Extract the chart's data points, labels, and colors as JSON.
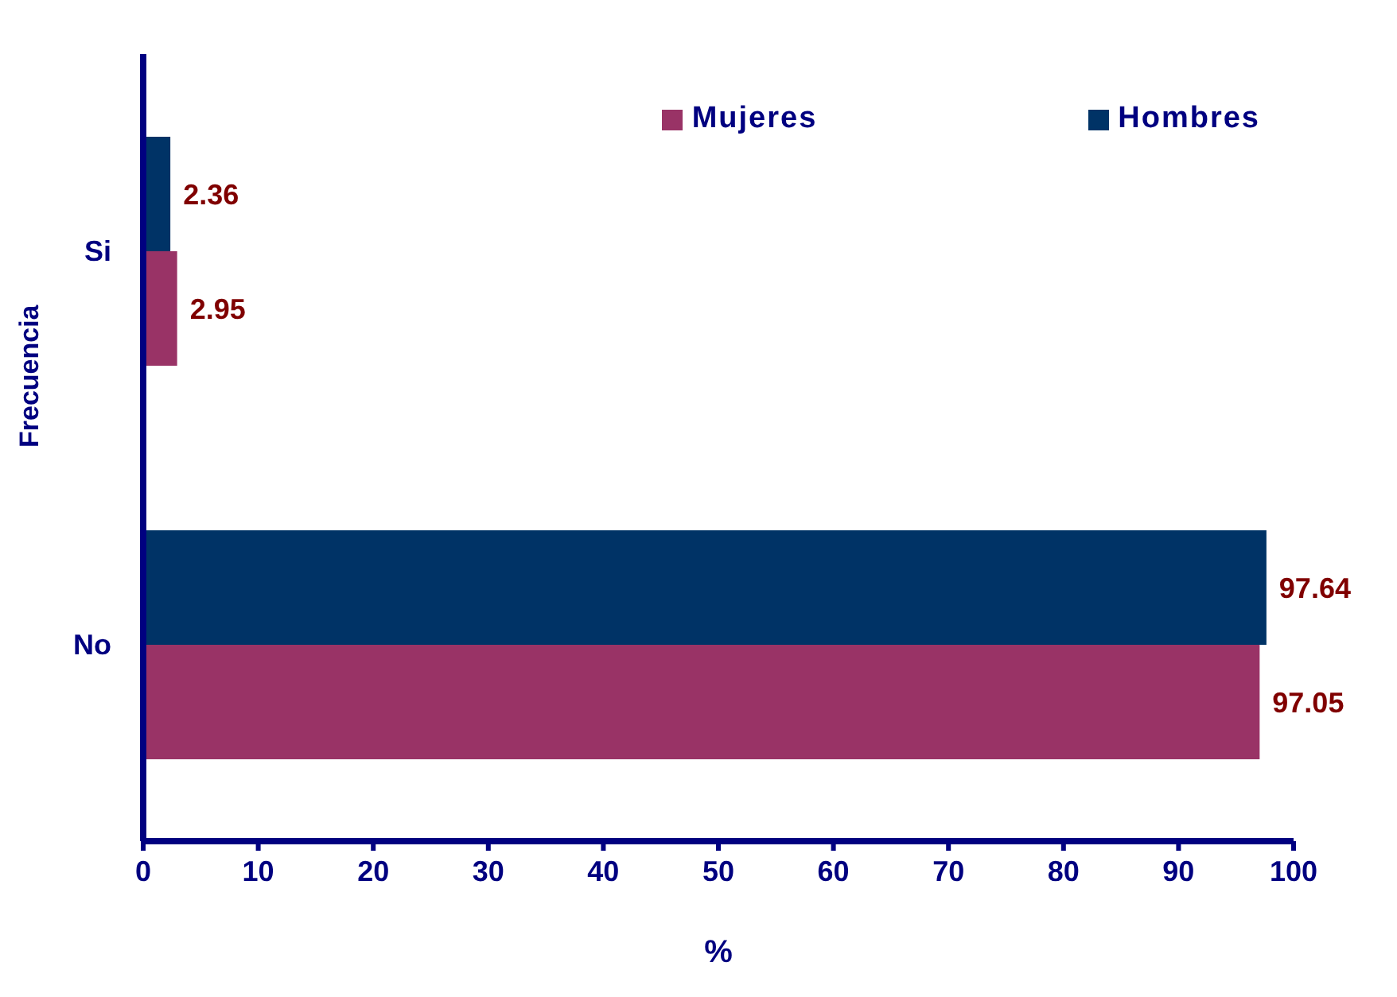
{
  "chart_data": {
    "type": "bar",
    "orientation": "horizontal",
    "categories": [
      "Si",
      "No"
    ],
    "xlabel": "%",
    "ylabel": "Frecuencia",
    "xlim": [
      0,
      100
    ],
    "xticks": [
      0,
      10,
      20,
      30,
      40,
      50,
      60,
      70,
      80,
      90,
      100
    ],
    "grid": false,
    "legend": "top right",
    "data_labels": true,
    "series": [
      {
        "name": "Mujeres",
        "color": "#993366",
        "values": [
          2.95,
          97.05
        ]
      },
      {
        "name": "Hombres",
        "color": "#003366",
        "values": [
          2.36,
          97.64
        ]
      }
    ]
  }
}
